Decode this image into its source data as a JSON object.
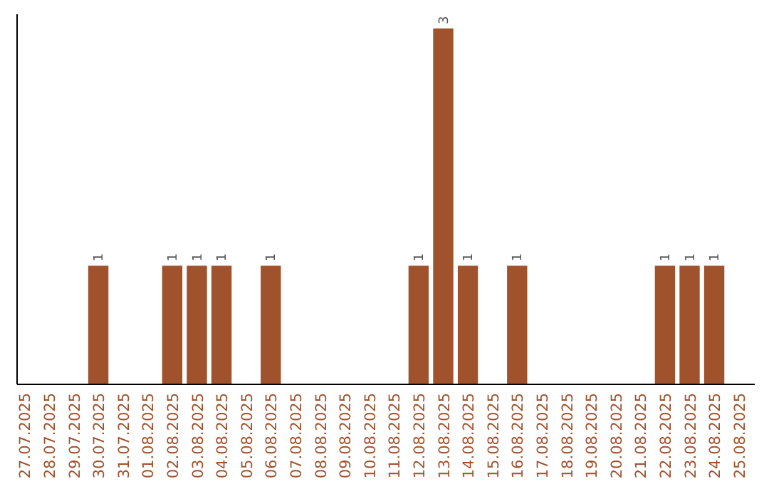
{
  "chart_data": {
    "type": "bar",
    "categories": [
      "27.07.2025",
      "28.07.2025",
      "29.07.2025",
      "30.07.2025",
      "31.07.2025",
      "01.08.2025",
      "02.08.2025",
      "03.08.2025",
      "04.08.2025",
      "05.08.2025",
      "06.08.2025",
      "07.08.2025",
      "08.08.2025",
      "09.08.2025",
      "10.08.2025",
      "11.08.2025",
      "12.08.2025",
      "13.08.2025",
      "14.08.2025",
      "15.08.2025",
      "16.08.2025",
      "17.08.2025",
      "18.08.2025",
      "19.08.2025",
      "20.08.2025",
      "21.08.2025",
      "22.08.2025",
      "23.08.2025",
      "24.08.2025",
      "25.08.2025"
    ],
    "values": [
      0,
      0,
      0,
      1,
      0,
      0,
      1,
      1,
      1,
      0,
      1,
      0,
      0,
      0,
      0,
      0,
      1,
      3,
      1,
      0,
      1,
      0,
      0,
      0,
      0,
      0,
      1,
      1,
      1,
      0
    ],
    "value_labels": [
      null,
      null,
      null,
      "1",
      null,
      null,
      "1",
      "1",
      "1",
      null,
      "1",
      null,
      null,
      null,
      null,
      null,
      "1",
      "3",
      "1",
      null,
      "1",
      null,
      null,
      null,
      null,
      null,
      "1",
      "1",
      "1",
      null
    ],
    "color": "#a0522d",
    "ylim": [
      0,
      3
    ],
    "tick_labels": "x"
  }
}
